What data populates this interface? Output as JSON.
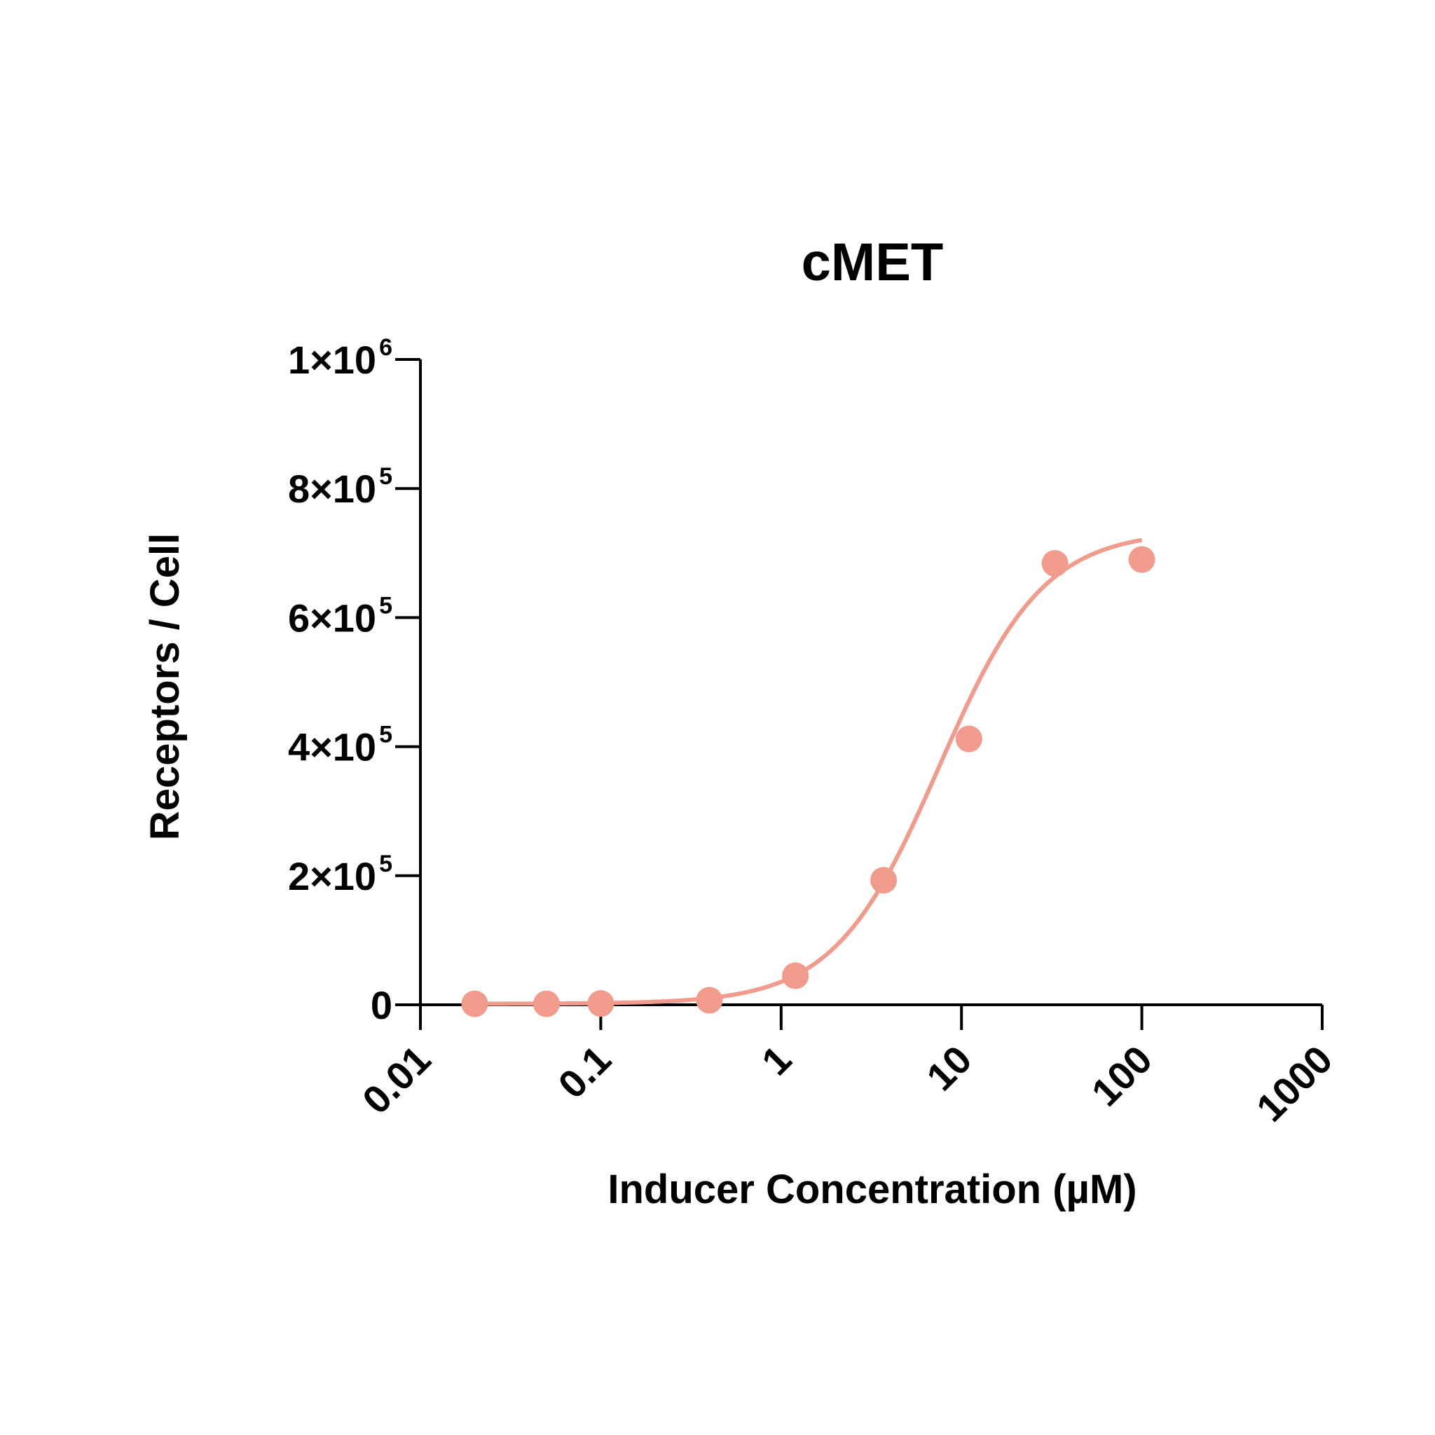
{
  "chart_data": {
    "type": "scatter",
    "title": "cMET",
    "xlabel": "Inducer Concentration (µM)",
    "ylabel": "Receptors / Cell",
    "x_scale": "log",
    "xlim": [
      0.01,
      1000
    ],
    "ylim": [
      0,
      1000000
    ],
    "x_ticks": [
      {
        "value": 0.01,
        "label": "0.01"
      },
      {
        "value": 0.1,
        "label": "0.1"
      },
      {
        "value": 1,
        "label": "1"
      },
      {
        "value": 10,
        "label": "10"
      },
      {
        "value": 100,
        "label": "100"
      },
      {
        "value": 1000,
        "label": "1000"
      }
    ],
    "y_ticks": [
      {
        "value": 0,
        "mantissa": "0",
        "exponent": ""
      },
      {
        "value": 200000,
        "mantissa": "2×10",
        "exponent": "5"
      },
      {
        "value": 400000,
        "mantissa": "4×10",
        "exponent": "5"
      },
      {
        "value": 600000,
        "mantissa": "6×10",
        "exponent": "5"
      },
      {
        "value": 800000,
        "mantissa": "8×10",
        "exponent": "5"
      },
      {
        "value": 1000000,
        "mantissa": "1×10",
        "exponent": "6"
      }
    ],
    "color": "#f19b8c",
    "series": [
      {
        "points": [
          {
            "x": 0.02,
            "y": 1500
          },
          {
            "x": 0.05,
            "y": 1500
          },
          {
            "x": 0.1,
            "y": 2000
          },
          {
            "x": 0.4,
            "y": 7000
          },
          {
            "x": 1.2,
            "y": 45000
          },
          {
            "x": 3.7,
            "y": 193000
          },
          {
            "x": 11,
            "y": 412000
          },
          {
            "x": 33,
            "y": 684000
          },
          {
            "x": 100,
            "y": 690000
          }
        ],
        "fit": {
          "model": "four-parameter logistic",
          "bottom": 1500,
          "top": 735000,
          "ec50": 7.5,
          "hill": 1.5,
          "x_range": [
            0.02,
            100
          ]
        }
      }
    ]
  }
}
